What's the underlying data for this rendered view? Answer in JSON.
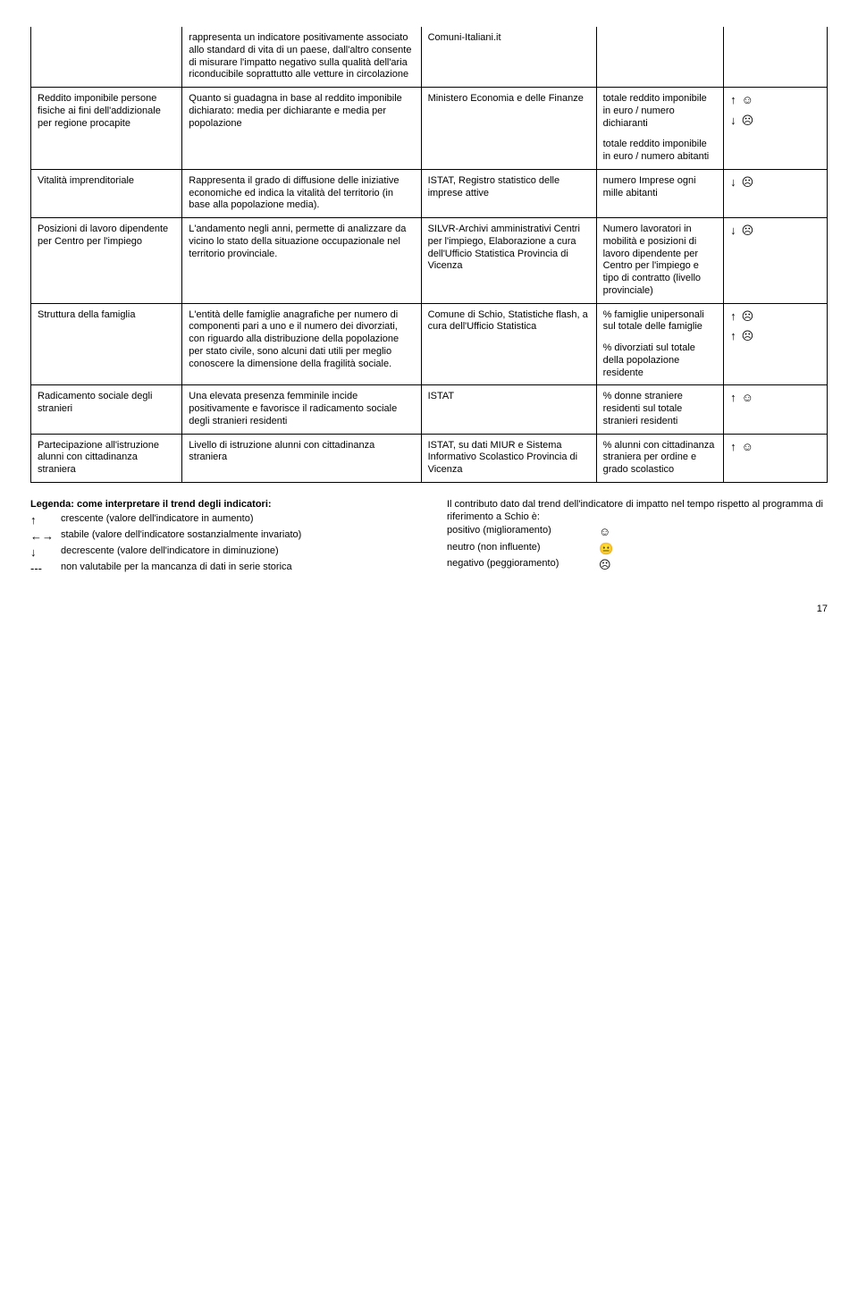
{
  "rows": [
    {
      "c1": "",
      "c2": "rappresenta un indicatore positivamente associato allo standard di vita di un paese, dall'altro consente di misurare l'impatto negativo sulla qualità dell'aria riconducibile soprattutto alle vetture in circolazione",
      "c3": "Comuni-Italiani.it",
      "c4": "",
      "trends": []
    },
    {
      "c1": "Reddito imponibile persone fisiche ai fini dell'addizionale per regione procapite",
      "c2": "Quanto si guadagna in base al reddito imponibile dichiarato: media per dichiarante e media per popolazione",
      "c3": "Ministero Economia e delle Finanze",
      "c4": "totale reddito imponibile in euro / numero dichiaranti",
      "trends": [
        [
          "↑",
          "☺"
        ],
        [
          "↓",
          "☹"
        ]
      ],
      "extra4": "totale reddito imponibile in euro / numero abitanti"
    },
    {
      "c1": "Vitalità imprenditoriale",
      "c2": "Rappresenta il grado di diffusione delle iniziative economiche ed indica la vitalità del territorio (in base alla popolazione media).",
      "c3": "ISTAT, Registro statistico delle imprese attive",
      "c4": "numero Imprese ogni mille abitanti",
      "trends": [
        [
          "↓",
          "☹"
        ]
      ]
    },
    {
      "c1": "Posizioni di lavoro dipendente per Centro per l'impiego",
      "c2": "L'andamento negli anni, permette di analizzare da vicino lo stato della situazione occupazionale nel territorio provinciale.",
      "c3": "SILVR-Archivi amministrativi Centri per l'impiego, Elaborazione a cura dell'Ufficio Statistica Provincia di Vicenza",
      "c4": "Numero lavoratori in mobilità e posizioni di lavoro dipendente per Centro per l'impiego e tipo di contratto (livello provinciale)",
      "trends": [
        [
          "↓",
          "☹"
        ]
      ]
    },
    {
      "c1": "Struttura della famiglia",
      "c2": "L'entità delle famiglie anagrafiche per numero di componenti pari a uno e il numero dei divorziati, con riguardo alla distribuzione della popolazione per stato civile, sono alcuni dati utili per meglio conoscere la dimensione della fragilità sociale.",
      "c3": "Comune di Schio, Statistiche flash, a cura dell'Ufficio Statistica",
      "c4": "% famiglie unipersonali sul totale delle famiglie",
      "trends": [
        [
          "↑",
          "☹"
        ],
        [
          "↑",
          "☹"
        ]
      ],
      "extra4": "% divorziati sul totale della popolazione residente"
    },
    {
      "c1": "Radicamento sociale degli stranieri",
      "c2": "Una elevata presenza femminile incide positivamente e favorisce il radicamento sociale degli stranieri residenti",
      "c3": "ISTAT",
      "c4": "% donne straniere residenti sul totale stranieri residenti",
      "trends": [
        [
          "↑",
          "☺"
        ]
      ]
    },
    {
      "c1": "Partecipazione all'istruzione alunni con cittadinanza straniera",
      "c2": "Livello di istruzione alunni con cittadinanza straniera",
      "c3": "ISTAT, su dati MIUR e Sistema Informativo Scolastico Provincia di Vicenza",
      "c4": "% alunni con cittadinanza straniera per ordine e grado scolastico",
      "trends": [
        [
          "↑",
          "☺"
        ]
      ]
    }
  ],
  "legend": {
    "title": "Legenda: come interpretare il trend degli indicatori:",
    "left": [
      {
        "sym": "↑",
        "text": "crescente (valore dell'indicatore in aumento)"
      },
      {
        "sym": "←→",
        "text": "stabile (valore dell'indicatore sostanzialmente invariato)"
      },
      {
        "sym": "↓",
        "text": "decrescente (valore dell'indicatore in diminuzione)"
      },
      {
        "sym": "---",
        "text": "non valutabile per la mancanza di dati in serie storica"
      }
    ],
    "right_intro": "Il contributo dato dal trend dell'indicatore di impatto nel tempo rispetto al programma di riferimento a Schio è:",
    "right": [
      {
        "text": "positivo (miglioramento)",
        "sym": "☺"
      },
      {
        "text": "neutro (non influente)",
        "sym": "😐"
      },
      {
        "text": "negativo (peggioramento)",
        "sym": "☹"
      }
    ]
  },
  "page": "17"
}
